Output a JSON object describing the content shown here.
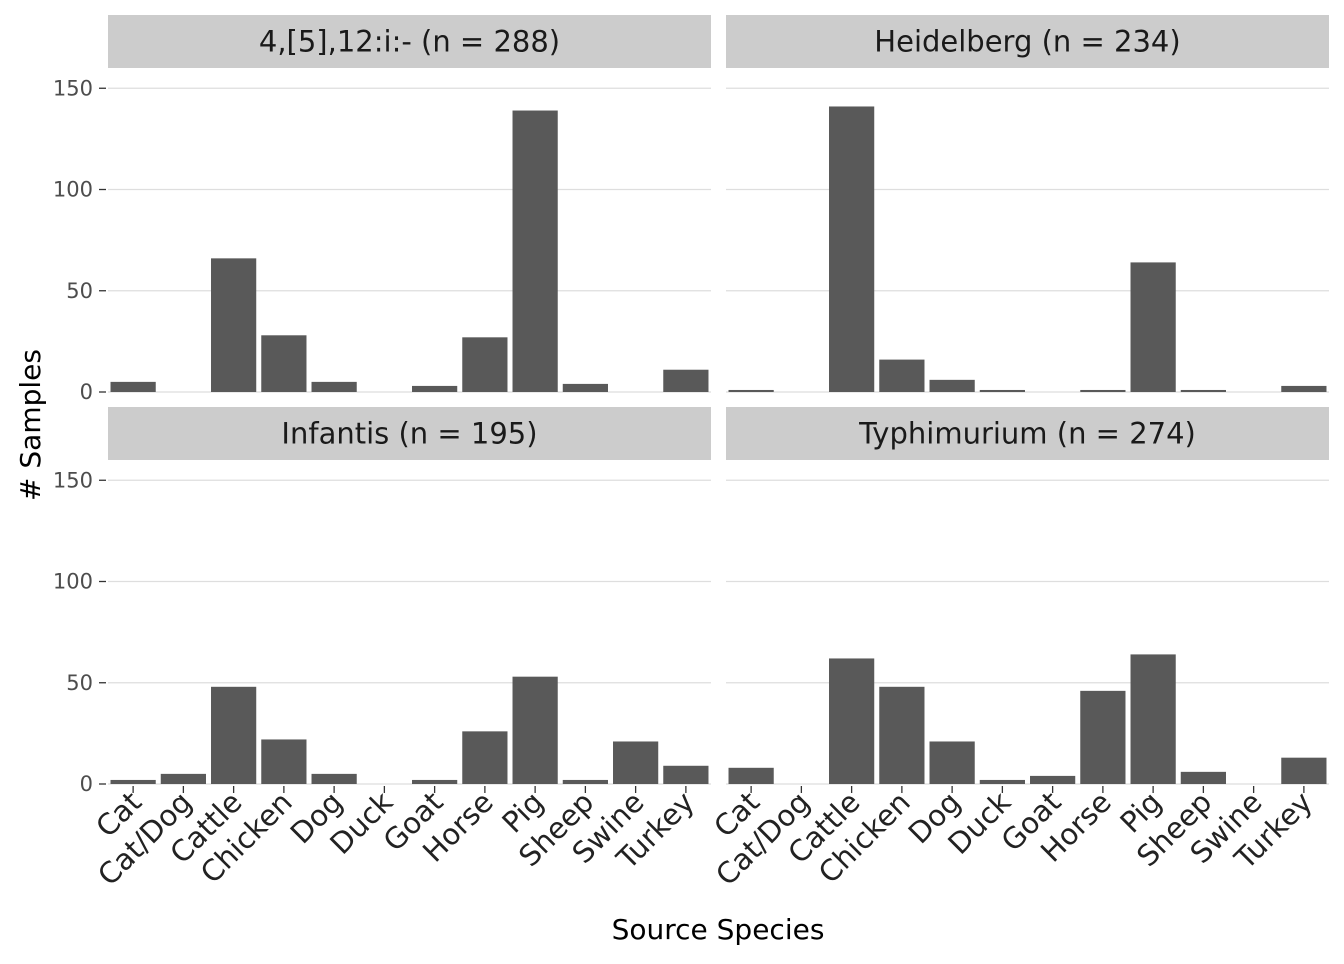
{
  "chart_data": {
    "type": "bar",
    "facet_layout": "2x2",
    "xlabel": "Source Species",
    "ylabel": "# Samples",
    "ylim": [
      0,
      160
    ],
    "yticks": [
      0,
      50,
      100,
      150
    ],
    "grid": true,
    "bar_color": "#595959",
    "strip_color": "#cccccc",
    "grid_color": "#dedede",
    "categories": [
      "Cat",
      "Cat/Dog",
      "Cattle",
      "Chicken",
      "Dog",
      "Duck",
      "Goat",
      "Horse",
      "Pig",
      "Sheep",
      "Swine",
      "Turkey"
    ],
    "panels": [
      {
        "title": "4,[5],12:i:- (n = 288)",
        "values": [
          5,
          0,
          66,
          28,
          5,
          0,
          3,
          27,
          139,
          4,
          0,
          11
        ]
      },
      {
        "title": "Heidelberg (n = 234)",
        "values": [
          1,
          0,
          141,
          16,
          6,
          1,
          0,
          1,
          64,
          1,
          0,
          3
        ]
      },
      {
        "title": "Infantis (n = 195)",
        "values": [
          2,
          5,
          48,
          22,
          5,
          0,
          2,
          26,
          53,
          2,
          21,
          9
        ]
      },
      {
        "title": "Typhimurium (n = 274)",
        "values": [
          8,
          0,
          62,
          48,
          21,
          2,
          4,
          46,
          64,
          6,
          0,
          13
        ]
      }
    ]
  }
}
